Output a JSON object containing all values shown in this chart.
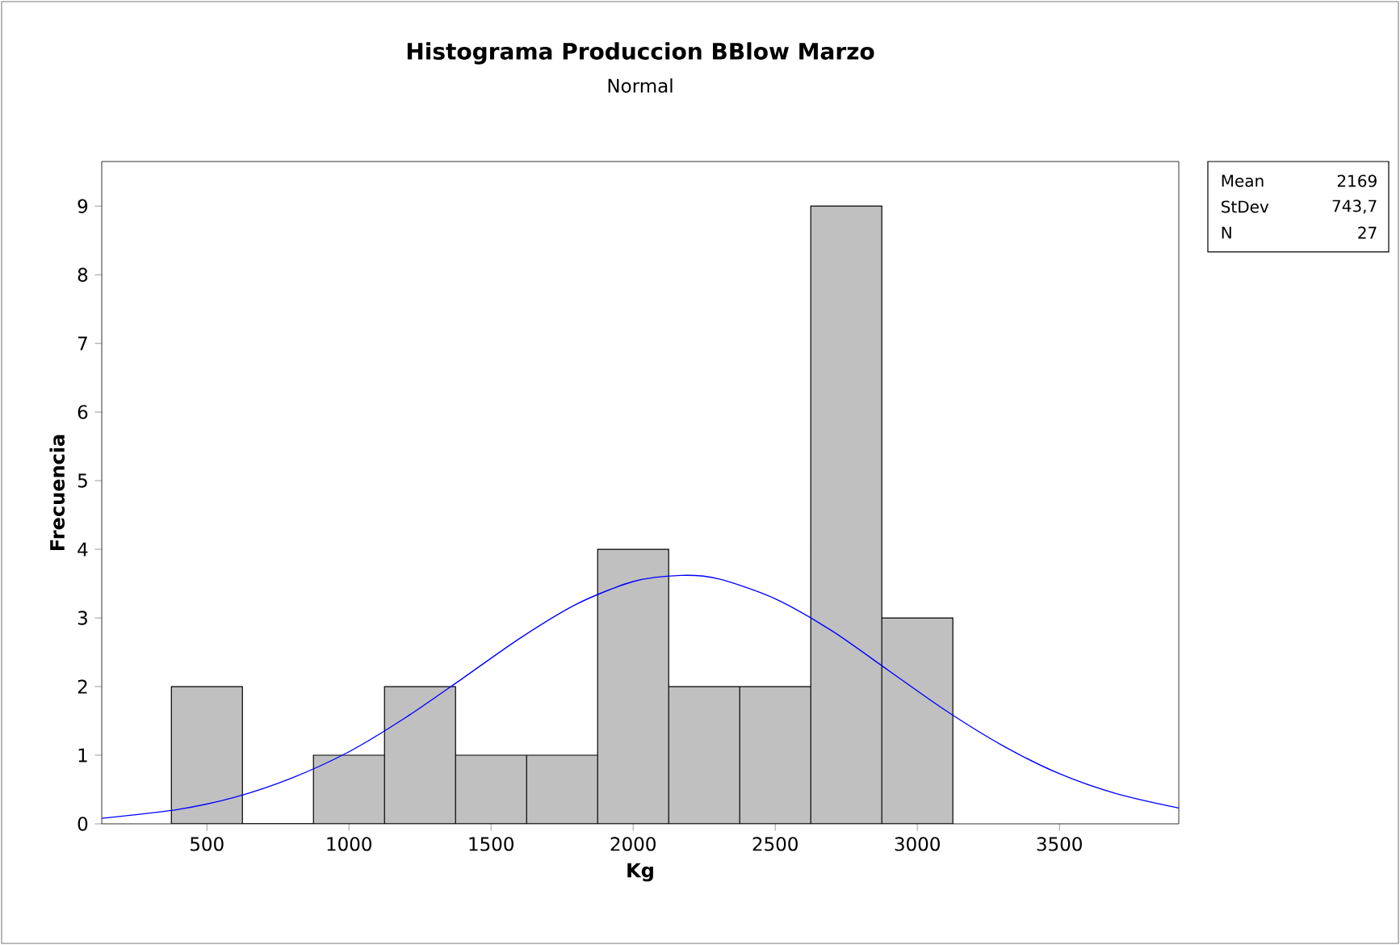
{
  "chart_data": {
    "type": "histogram",
    "title": "Histograma Produccion BBlow Marzo",
    "subtitle": "Normal",
    "xlabel": "Kg",
    "ylabel": "Frecuencia",
    "xlim": [
      130,
      3920
    ],
    "ylim": [
      0,
      9.65
    ],
    "xticks": [
      500,
      1000,
      1500,
      2000,
      2500,
      3000,
      3500
    ],
    "yticks": [
      0,
      1,
      2,
      3,
      4,
      5,
      6,
      7,
      8,
      9
    ],
    "series": [
      {
        "color": "#c0c0c0",
        "bins": [
          375,
          625,
          875,
          1125,
          1375,
          1625,
          1875,
          2125,
          2375,
          2625,
          2875,
          3125
        ],
        "values": [
          2,
          0,
          1,
          2,
          1,
          1,
          4,
          2,
          2,
          9,
          3
        ]
      },
      {
        "type": "line",
        "color": "#0000ff",
        "x": [
          130,
          400,
          600,
          800,
          1000,
          1200,
          1400,
          1600,
          1800,
          2000,
          2169,
          2300,
          2500,
          2700,
          2900,
          3100,
          3300,
          3500,
          3700,
          3920
        ],
        "values": [
          0.08,
          0.21,
          0.39,
          0.67,
          1.05,
          1.55,
          2.12,
          2.7,
          3.2,
          3.53,
          3.62,
          3.57,
          3.28,
          2.81,
          2.23,
          1.65,
          1.14,
          0.73,
          0.44,
          0.23
        ]
      }
    ],
    "annotations": [
      "Mean",
      "2169",
      "StDev",
      "743,7",
      "N",
      "27"
    ]
  }
}
